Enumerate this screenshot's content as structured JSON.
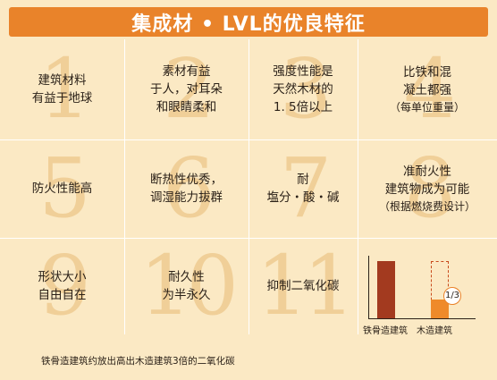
{
  "title": "集成材 • LVL的优良特征",
  "cells": [
    {
      "number": "1",
      "lines": [
        "建筑材料",
        "有益于地球"
      ],
      "sub": ""
    },
    {
      "number": "2",
      "lines": [
        "素材有益",
        "于人，对耳朵",
        "和眼睛柔和"
      ],
      "sub": ""
    },
    {
      "number": "3",
      "lines": [
        "强度性能是",
        "天然木材的",
        "1. 5倍以上"
      ],
      "sub": ""
    },
    {
      "number": "4",
      "lines": [
        "比铁和混",
        "凝土都强"
      ],
      "sub": "（每单位重量）"
    },
    {
      "number": "5",
      "lines": [
        "防火性能高"
      ],
      "sub": ""
    },
    {
      "number": "6",
      "lines": [
        "断热性优秀，",
        "调湿能力拔群"
      ],
      "sub": ""
    },
    {
      "number": "7",
      "lines": [
        "耐",
        "塩分・酸・碱"
      ],
      "sub": ""
    },
    {
      "number": "8",
      "lines": [
        "准耐火性",
        "建筑物成为可能"
      ],
      "sub": "（根据燃烧费设计）"
    },
    {
      "number": "9",
      "lines": [
        "形状大小",
        "自由自在"
      ],
      "sub": ""
    },
    {
      "number": "10",
      "lines": [
        "耐久性",
        "为半永久"
      ],
      "sub": ""
    },
    {
      "number": "11",
      "lines": [
        "抑制二氧化碳"
      ],
      "sub": ""
    }
  ],
  "chart_data": {
    "type": "bar",
    "categories": [
      "铁骨造建筑",
      "木造建筑"
    ],
    "values": [
      3,
      1
    ],
    "ratio_label": "1/3",
    "colors": {
      "steel": "#a33a1f",
      "wood": "#ef8a2a",
      "outline": "#c84a1c"
    }
  },
  "footer": "铁骨造建筑约放出高出木造建筑3倍的二氧化碳"
}
